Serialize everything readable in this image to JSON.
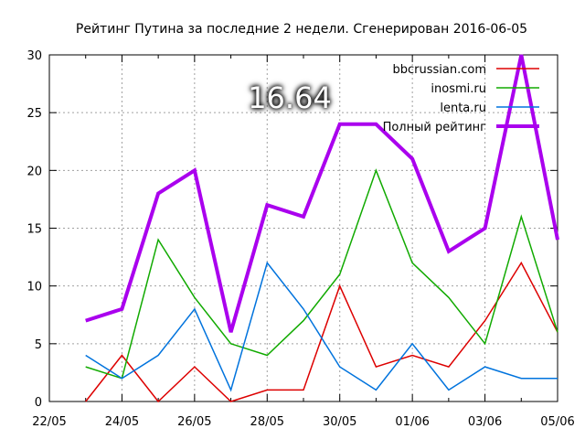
{
  "chart_data": {
    "type": "line",
    "title": "Рейтинг Путина за последние 2 недели. Сгенерирован 2016-06-05",
    "overlay_value": "16.64",
    "x_tick_labels": [
      "22/05",
      "24/05",
      "26/05",
      "28/05",
      "30/05",
      "01/06",
      "03/06",
      "05/06"
    ],
    "x": [
      "2016-05-23",
      "2016-05-24",
      "2016-05-25",
      "2016-05-26",
      "2016-05-27",
      "2016-05-28",
      "2016-05-29",
      "2016-05-30",
      "2016-05-31",
      "2016-06-01",
      "2016-06-02",
      "2016-06-03",
      "2016-06-04",
      "2016-06-05"
    ],
    "xlim": [
      "2016-05-22",
      "2016-06-05"
    ],
    "ylim": [
      0,
      30
    ],
    "y_ticks": [
      0,
      5,
      10,
      15,
      20,
      25,
      30
    ],
    "grid": true,
    "legend_position": "top-right",
    "series": [
      {
        "name": "bbcrussian.com",
        "color": "#dd0000",
        "values": [
          0,
          4,
          0,
          3,
          0,
          1,
          1,
          10,
          3,
          4,
          3,
          7,
          12,
          6
        ]
      },
      {
        "name": "inosmi.ru",
        "color": "#11aa00",
        "values": [
          3,
          2,
          14,
          9,
          5,
          4,
          7,
          11,
          20,
          12,
          9,
          5,
          16,
          6
        ]
      },
      {
        "name": "lenta.ru",
        "color": "#0073dd",
        "values": [
          4,
          2,
          4,
          8,
          1,
          12,
          8,
          3,
          1,
          5,
          1,
          3,
          2,
          2
        ]
      },
      {
        "name": "Полный рейтинг",
        "color": "#aa00ee",
        "values": [
          7,
          8,
          18,
          20,
          6,
          17,
          16,
          24,
          24,
          21,
          13,
          15,
          30,
          14
        ]
      }
    ]
  }
}
